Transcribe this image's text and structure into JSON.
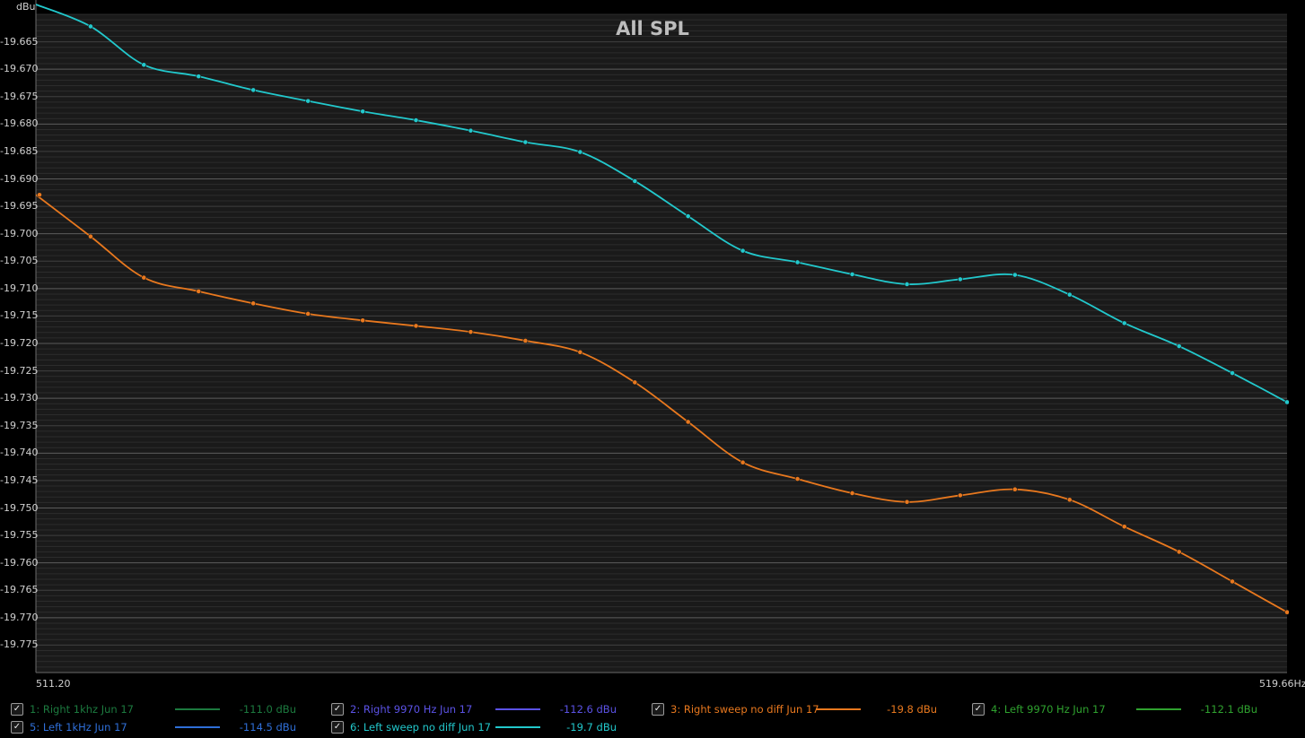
{
  "chart_data": {
    "type": "line",
    "title": "All SPL",
    "ylabel": "dBu",
    "xlabel": "",
    "xlim": [
      511.2,
      519.66
    ],
    "ylim": [
      -19.78,
      -19.66
    ],
    "x_tick_labels": [
      "511.20",
      "519.66Hz"
    ],
    "y_ticks": [
      -19.665,
      -19.67,
      -19.675,
      -19.68,
      -19.685,
      -19.69,
      -19.695,
      -19.7,
      -19.705,
      -19.71,
      -19.715,
      -19.72,
      -19.725,
      -19.73,
      -19.735,
      -19.74,
      -19.745,
      -19.75,
      -19.755,
      -19.76,
      -19.765,
      -19.77,
      -19.775
    ],
    "y_tick_labels": [
      "-19.665",
      "-19.670",
      "-19.675",
      "-19.680",
      "-19.685",
      "-19.690",
      "-19.695",
      "-19.700",
      "-19.705",
      "-19.710",
      "-19.715",
      "-19.720",
      "-19.725",
      "-19.730",
      "-19.735",
      "-19.740",
      "-19.745",
      "-19.750",
      "-19.755",
      "-19.760",
      "-19.765",
      "-19.770",
      "-19.775"
    ],
    "grid": true,
    "legend_position": "bottom",
    "series": [
      {
        "name": "6: Left  sweep no diff Jun 17",
        "color": "#22c8cc",
        "x": [
          511.2,
          511.57,
          511.93,
          512.3,
          512.67,
          513.04,
          513.41,
          513.77,
          514.14,
          514.51,
          514.88,
          515.25,
          515.61,
          515.98,
          516.35,
          516.72,
          517.09,
          517.45,
          517.82,
          518.19,
          518.56,
          518.93,
          519.29,
          519.66
        ],
        "y": [
          -19.6582,
          -19.6622,
          -19.6692,
          -19.6713,
          -19.6738,
          -19.6758,
          -19.6777,
          -19.6793,
          -19.6812,
          -19.6833,
          -19.6851,
          -19.6904,
          -19.6968,
          -19.7031,
          -19.7052,
          -19.7074,
          -19.7092,
          -19.7083,
          -19.7075,
          -19.7111,
          -19.7163,
          -19.7205,
          -19.7254,
          -19.7307
        ]
      },
      {
        "name": "3: Right  sweep no diff Jun 17",
        "color": "#e8781e",
        "x": [
          511.2,
          511.57,
          511.93,
          512.3,
          512.67,
          513.04,
          513.41,
          513.77,
          514.14,
          514.51,
          514.88,
          515.25,
          515.61,
          515.98,
          516.35,
          516.72,
          517.09,
          517.45,
          517.82,
          518.19,
          518.56,
          518.93,
          519.29,
          519.66
        ],
        "y": [
          -19.6929,
          -19.7005,
          -19.708,
          -19.7105,
          -19.7127,
          -19.7146,
          -19.7158,
          -19.7168,
          -19.7179,
          -19.7195,
          -19.7216,
          -19.7271,
          -19.7343,
          -19.7417,
          -19.7447,
          -19.7473,
          -19.7489,
          -19.7477,
          -19.7466,
          -19.7485,
          -19.7534,
          -19.758,
          -19.7634,
          -19.769
        ]
      }
    ]
  },
  "legend": [
    {
      "name": "1: Right 1khz Jun 17",
      "value": "-111.0 dBu",
      "color": "#1c7a3f",
      "checked": true
    },
    {
      "name": "2: Right 9970 Hz Jun 17",
      "value": "-112.6 dBu",
      "color": "#5b52e6",
      "checked": true
    },
    {
      "name": "3: Right  sweep no diff Jun 17",
      "value": "-19.8 dBu",
      "color": "#e8781e",
      "checked": true
    },
    {
      "name": "4: Left 9970 Hz Jun 17",
      "value": "-112.1 dBu",
      "color": "#2fa22f",
      "checked": true
    },
    {
      "name": "5: Left 1kHz  Jun 17",
      "value": "-114.5 dBu",
      "color": "#2f6fd8",
      "checked": true
    },
    {
      "name": "6: Left  sweep no diff Jun 17",
      "value": "-19.7 dBu",
      "color": "#22c8cc",
      "checked": true
    }
  ],
  "checkmark_glyph": "✓"
}
